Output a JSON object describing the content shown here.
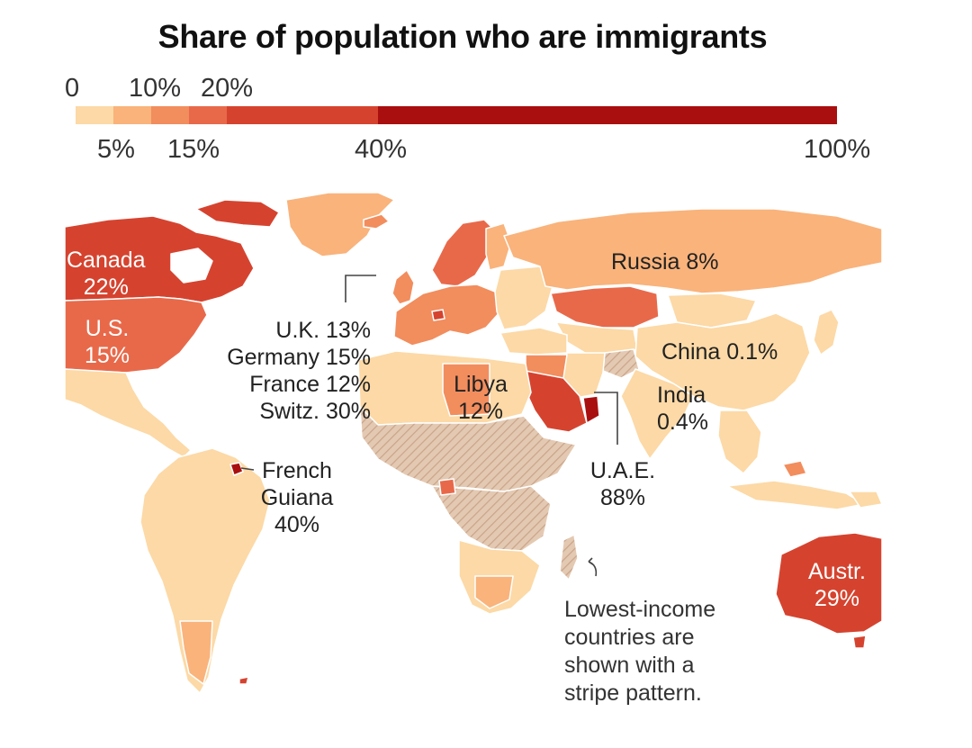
{
  "title": "Share of population who are immigrants",
  "legend": {
    "top_ticks": [
      "0",
      "10%",
      "20%"
    ],
    "bottom_ticks": [
      "5%",
      "15%",
      "40%",
      "100%"
    ],
    "bins": [
      {
        "range": "0–5%",
        "color": "#fcd9a6"
      },
      {
        "range": "5–10%",
        "color": "#f9b37b"
      },
      {
        "range": "10–15%",
        "color": "#f28d5d"
      },
      {
        "range": "15–20%",
        "color": "#e8694a"
      },
      {
        "range": "20–40%",
        "color": "#d5432f"
      },
      {
        "range": "40–100%",
        "color": "#a90f0f"
      }
    ]
  },
  "countries": {
    "canada": {
      "name": "Canada",
      "value": "22%"
    },
    "us": {
      "name": "U.S.",
      "value": "15%"
    },
    "russia": {
      "label": "Russia 8%"
    },
    "uk": {
      "label": "U.K. 13%"
    },
    "germany": {
      "label": "Germany 15%"
    },
    "france": {
      "label": "France 12%"
    },
    "switz": {
      "label": "Switz. 30%"
    },
    "libya": {
      "name": "Libya",
      "value": "12%"
    },
    "china": {
      "label": "China 0.1%"
    },
    "india": {
      "name": "India",
      "value": "0.4%"
    },
    "uae": {
      "name": "U.A.E.",
      "value": "88%"
    },
    "french_guiana": {
      "name1": "French",
      "name2": "Guiana",
      "value": "40%"
    },
    "australia": {
      "name": "Austr.",
      "value": "29%"
    }
  },
  "note": {
    "line1": "Lowest-income",
    "line2": "countries are",
    "line3": "shown with a",
    "line4": "stripe pattern."
  },
  "colors": {
    "ocean": "#ffffff",
    "stripe": "#c9a58a"
  }
}
